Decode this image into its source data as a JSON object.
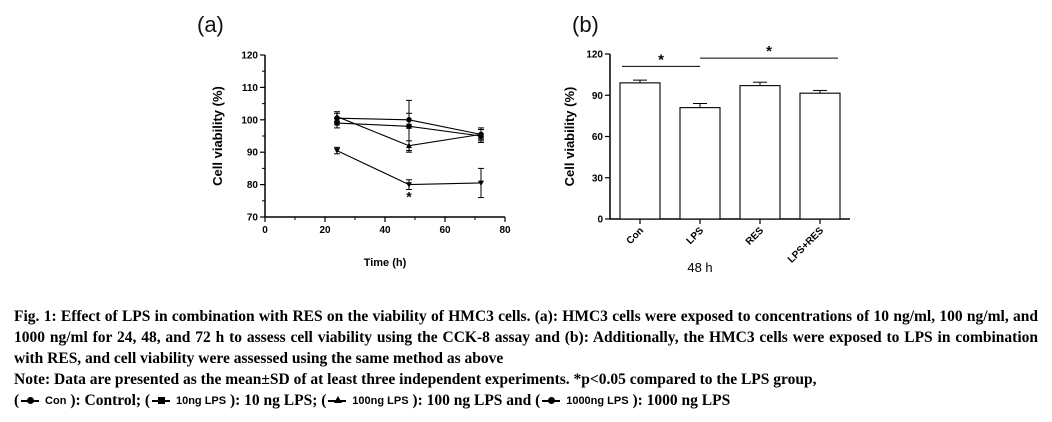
{
  "panels": {
    "a": "(a)",
    "b": "(b)"
  },
  "chart_data": [
    {
      "type": "line",
      "panel": "(a)",
      "xlabel": "Time (h)",
      "ylabel": "Cell viability (%)",
      "xlim": [
        0,
        80
      ],
      "ylim": [
        70,
        120
      ],
      "xticks": [
        "0",
        "20",
        "40",
        "60",
        "80"
      ],
      "yticks": [
        "70",
        "80",
        "90",
        "100",
        "110",
        "120"
      ],
      "x": [
        24,
        48,
        72
      ],
      "series": [
        {
          "name": "Con",
          "marker": "circle",
          "values": [
            100.5,
            100,
            95.5
          ],
          "errors": [
            1.5,
            2,
            1.5
          ]
        },
        {
          "name": "10ng LPS",
          "marker": "square",
          "values": [
            99,
            98,
            95
          ],
          "errors": [
            1.5,
            8,
            2
          ]
        },
        {
          "name": "100ng LPS",
          "marker": "triangle",
          "values": [
            101,
            92,
            95.5
          ],
          "errors": [
            1.5,
            1.5,
            2
          ]
        },
        {
          "name": "1000ng LPS",
          "marker": "triangle-down",
          "values": [
            90.5,
            80,
            80.5
          ],
          "errors": [
            1,
            1.5,
            4.5
          ]
        }
      ],
      "annotations": [
        {
          "text": "*",
          "x": 48,
          "y": 76
        }
      ]
    },
    {
      "type": "bar",
      "panel": "(b)",
      "xlabel": "48 h",
      "ylabel": "Cell viability (%)",
      "ylim": [
        0,
        120
      ],
      "yticks": [
        "0",
        "30",
        "60",
        "90",
        "120"
      ],
      "categories": [
        "Con",
        "LPS",
        "RES",
        "LPS+RES"
      ],
      "values": [
        99,
        81,
        97,
        91.5
      ],
      "errors": [
        2,
        3,
        2.5,
        2
      ],
      "annotations": [
        {
          "text": "*",
          "from": "Con",
          "to": "LPS",
          "y": 111
        },
        {
          "text": "*",
          "from": "LPS",
          "to": "LPS+RES",
          "y": 117
        }
      ]
    }
  ],
  "caption": {
    "fig": "Fig. 1: Effect of LPS in combination with RES on the viability of HMC3 cells. (a): HMC3 cells were exposed to concentrations of 10 ng/ml, 100 ng/ml, and 1000 ng/ml for 24, 48, and 72 h to assess cell viability using the CCK-8 assay and (b): Additionally, the HMC3 cells were exposed to LPS in combination with RES, and cell viability were assessed using the same method as above",
    "note_start": "Note: Data are presented as the mean±SD of at least three independent experiments. *p<0.05 compared to the LPS group,",
    "legend": [
      {
        "key": "Con",
        "text": "): Control; ("
      },
      {
        "key": "10ng LPS",
        "text": "): 10 ng LPS; ("
      },
      {
        "key": "100ng LPS",
        "text": "): 100 ng LPS and ("
      },
      {
        "key": "1000ng LPS",
        "text": "): 1000 ng LPS"
      }
    ]
  }
}
